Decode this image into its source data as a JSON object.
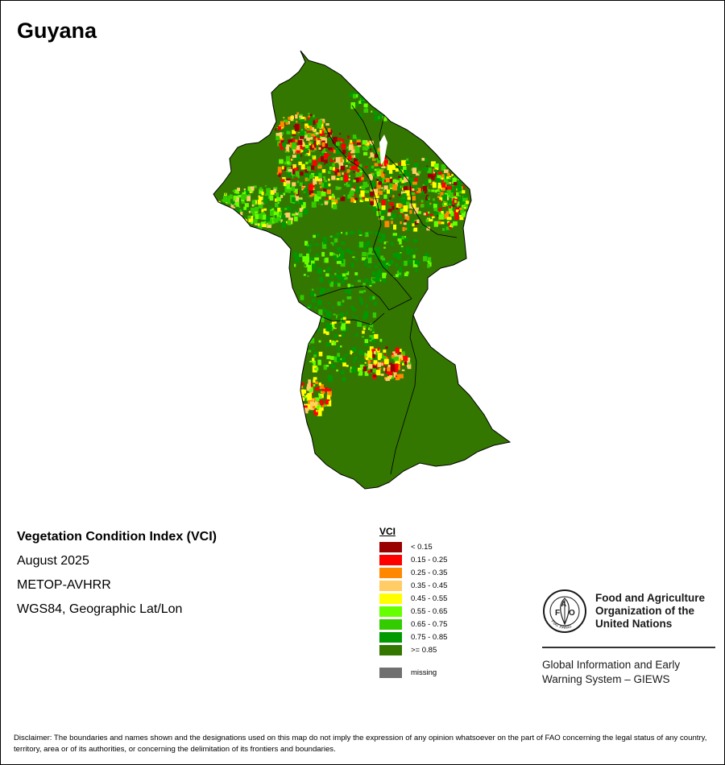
{
  "title": "Guyana",
  "info": {
    "index_name": "Vegetation Condition Index (VCI)",
    "period": "August 2025",
    "sensor": "METOP-AVHRR",
    "projection": "WGS84, Geographic Lat/Lon"
  },
  "legend": {
    "title": "VCI",
    "classes": [
      {
        "label": "< 0.15",
        "color": "#990000"
      },
      {
        "label": "0.15 - 0.25",
        "color": "#ff0000"
      },
      {
        "label": "0.25 - 0.35",
        "color": "#ff8800"
      },
      {
        "label": "0.35 - 0.45",
        "color": "#ffcc66"
      },
      {
        "label": "0.45 - 0.55",
        "color": "#ffff00"
      },
      {
        "label": "0.55 - 0.65",
        "color": "#66ff00"
      },
      {
        "label": "0.65 - 0.75",
        "color": "#33cc00"
      },
      {
        "label": "0.75 - 0.85",
        "color": "#009900"
      },
      {
        "label": ">= 0.85",
        "color": "#337700"
      }
    ],
    "missing": {
      "label": "missing",
      "color": "#707070"
    }
  },
  "org": {
    "name_lines": [
      "Food and Agriculture",
      "Organization of the",
      "United Nations"
    ],
    "logo_letters": "FAO",
    "logo_motto": "FIAT PANIS",
    "system_lines": [
      "Global Information and Early",
      "Warning System – GIEWS"
    ]
  },
  "disclaimer": "Disclaimer: The boundaries and names shown and the designations used on this map do not imply the expression of any opinion whatsoever on the part of FAO concerning the legal status of any country, territory, area or of its authorities, or concerning the delimitation of its frontiers and boundaries."
}
